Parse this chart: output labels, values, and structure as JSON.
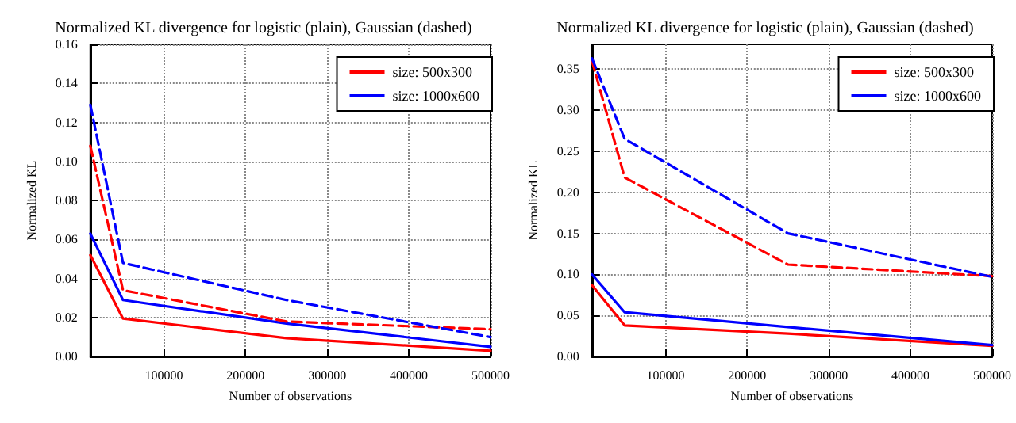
{
  "chart_data": [
    {
      "type": "line",
      "title": "Normalized KL divergence for logistic (plain), Gaussian (dashed)",
      "xlabel": "Number of observations",
      "ylabel": "Normalized KL",
      "x": [
        10000,
        50000,
        250000,
        500000
      ],
      "xlim": [
        10000,
        500000
      ],
      "xticks": [
        100000,
        200000,
        300000,
        400000,
        500000
      ],
      "ylim": [
        0,
        0.16
      ],
      "yticks": [
        {
          "value": 0,
          "label": "0.00"
        },
        {
          "value": 0.02,
          "label": "0.02"
        },
        {
          "value": 0.04,
          "label": "0.04"
        },
        {
          "value": 0.06,
          "label": "0.06"
        },
        {
          "value": 0.08,
          "label": "0.08"
        },
        {
          "value": 0.1,
          "label": "0.10"
        },
        {
          "value": 0.12,
          "label": "0.12"
        },
        {
          "value": 0.14,
          "label": "0.14"
        },
        {
          "value": 0.16,
          "label": "0.16"
        }
      ],
      "grid": true,
      "legend": "top right",
      "marker": "none",
      "series": [
        {
          "name": "size: 500x300",
          "color": "#ff0000",
          "line_style": "solid",
          "values": [
            0.052,
            0.0195,
            0.0095,
            0.003
          ]
        },
        {
          "name": "size: 1000x600",
          "color": "#0000ff",
          "line_style": "solid",
          "values": [
            0.063,
            0.029,
            0.017,
            0.005
          ]
        },
        {
          "color": "#ff0000",
          "line_style": "dashed",
          "values": [
            0.108,
            0.034,
            0.018,
            0.014
          ]
        },
        {
          "color": "#0000ff",
          "line_style": "dashed",
          "values": [
            0.129,
            0.048,
            0.029,
            0.01
          ]
        }
      ]
    },
    {
      "type": "line",
      "title": "Normalized KL divergence for logistic (plain), Gaussian (dashed)",
      "xlabel": "Number of observations",
      "ylabel": "Normalized KL",
      "x": [
        10000,
        50000,
        250000,
        500000
      ],
      "xlim": [
        10000,
        500000
      ],
      "xticks": [
        100000,
        200000,
        300000,
        400000,
        500000
      ],
      "ylim": [
        0,
        0.38
      ],
      "yticks": [
        {
          "value": 0,
          "label": "0.00"
        },
        {
          "value": 0.05,
          "label": "0.05"
        },
        {
          "value": 0.1,
          "label": "0.10"
        },
        {
          "value": 0.15,
          "label": "0.15"
        },
        {
          "value": 0.2,
          "label": "0.20"
        },
        {
          "value": 0.25,
          "label": "0.25"
        },
        {
          "value": 0.3,
          "label": "0.30"
        },
        {
          "value": 0.35,
          "label": "0.35"
        }
      ],
      "grid": true,
      "legend": "top right",
      "marker": "none",
      "series": [
        {
          "name": "size: 500x300",
          "color": "#ff0000",
          "line_style": "solid",
          "values": [
            0.087,
            0.038,
            0.028,
            0.013
          ]
        },
        {
          "name": "size: 1000x600",
          "color": "#0000ff",
          "line_style": "solid",
          "values": [
            0.1,
            0.054,
            0.036,
            0.014
          ]
        },
        {
          "color": "#ff0000",
          "line_style": "dashed",
          "values": [
            0.36,
            0.218,
            0.112,
            0.098
          ]
        },
        {
          "color": "#0000ff",
          "line_style": "dashed",
          "values": [
            0.363,
            0.265,
            0.15,
            0.097
          ]
        }
      ]
    }
  ]
}
